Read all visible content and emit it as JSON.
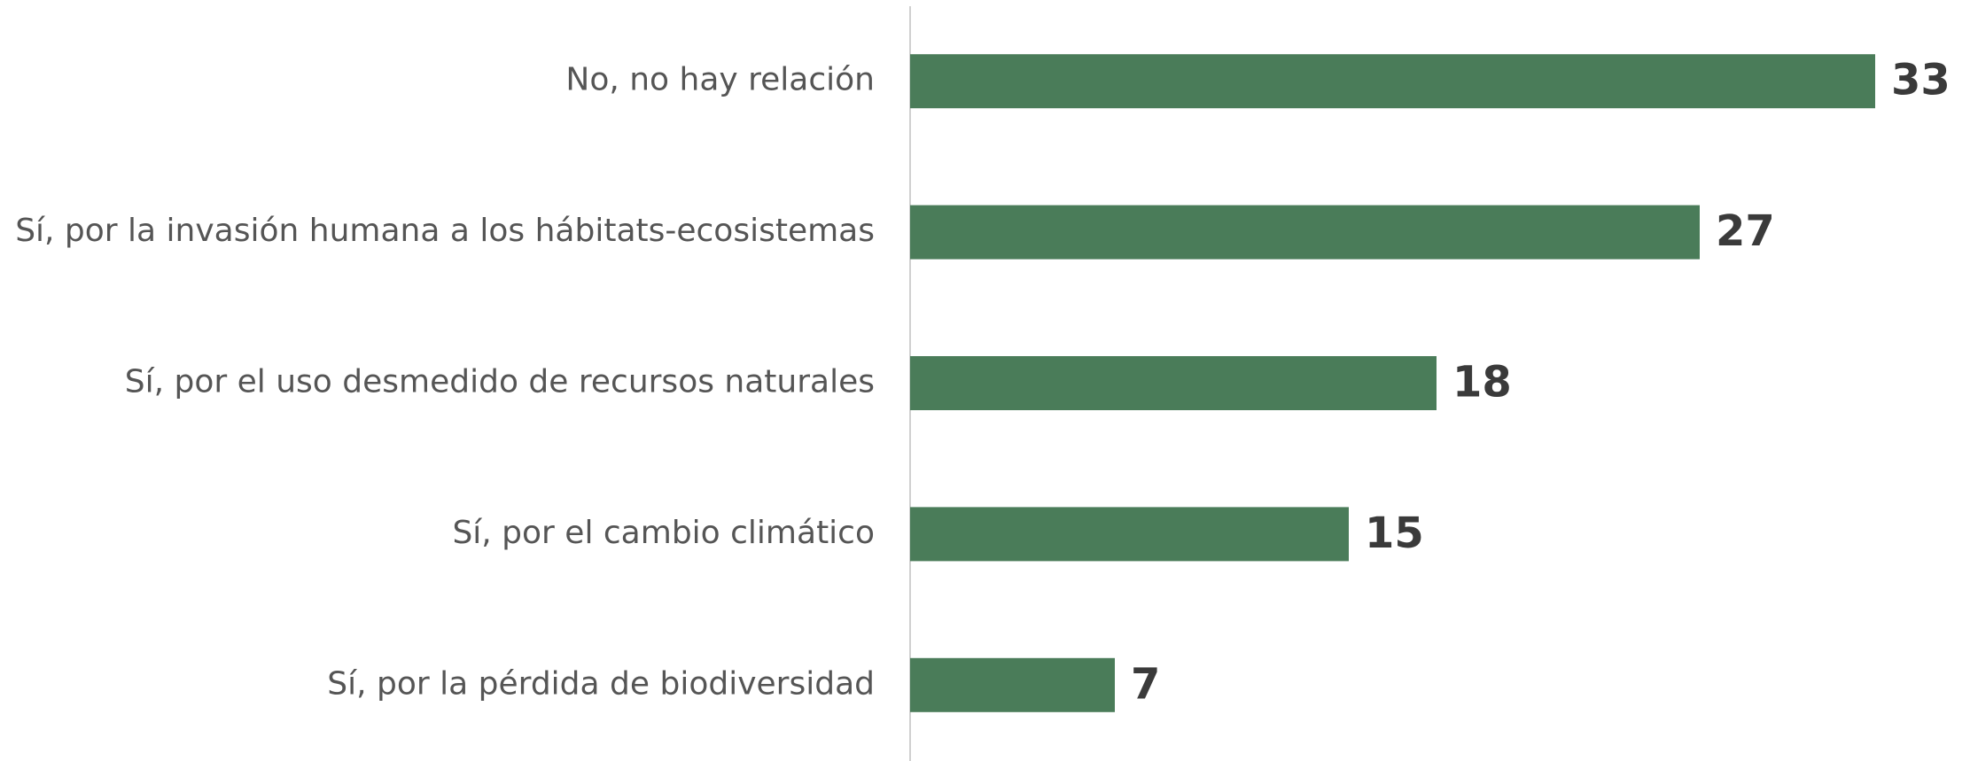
{
  "chart_data": {
    "type": "bar",
    "orientation": "horizontal",
    "categories": [
      "No, no hay relación",
      "Sí, por la invasión humana a los hábitats-ecosistemas",
      "Sí, por el uso desmedido de recursos naturales",
      "Sí, por el cambio climático",
      "Sí, por la pérdida de biodiversidad"
    ],
    "values": [
      33,
      27,
      18,
      15,
      7
    ],
    "color": "#4a7c59"
  }
}
